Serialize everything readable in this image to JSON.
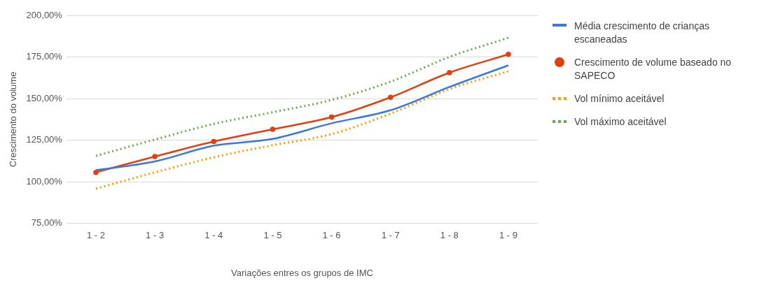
{
  "chart_data": {
    "type": "line",
    "xlabel": "Variações entres os grupos de IMC",
    "ylabel": "Crescimento do volume",
    "categories": [
      "1 - 2",
      "1 - 3",
      "1 - 4",
      "1 - 5",
      "1 - 6",
      "1 - 7",
      "1 - 8",
      "1 - 9"
    ],
    "series": [
      {
        "name": "Média crescimento de crianças escaneadas",
        "color": "#3c78d8",
        "values": [
          107,
          112.3,
          121.7,
          125.8,
          135.2,
          143,
          157,
          170
        ],
        "marker": "none",
        "line_style": "solid"
      },
      {
        "name": "Crescimento de volume baseado no SAPECO",
        "color": "#e0400f",
        "values": [
          105.7,
          115.2,
          124.2,
          131.6,
          138.9,
          150.8,
          165.6,
          176.6
        ],
        "marker": "circle",
        "line_style": "solid"
      },
      {
        "name": "Vol mínimo aceitável",
        "color": "#ff9900",
        "values": [
          95.9,
          105.7,
          114.8,
          122,
          128.7,
          141,
          155.7,
          166.4
        ],
        "marker": "none",
        "line_style": "dotted"
      },
      {
        "name": "Vol máximo aceitável",
        "color": "#6aa84f",
        "values": [
          115.6,
          125.4,
          134.8,
          141.8,
          149.2,
          160.2,
          175,
          186.5
        ],
        "marker": "none",
        "line_style": "dotted"
      }
    ],
    "ylim": [
      75,
      200
    ],
    "yticks": [
      {
        "value": 75,
        "label": "75,00%"
      },
      {
        "value": 100,
        "label": "100,00%"
      },
      {
        "value": 125,
        "label": "125,00%"
      },
      {
        "value": 150,
        "label": "150,00%"
      },
      {
        "value": 175,
        "label": "175,00%"
      },
      {
        "value": 200,
        "label": "200,00%"
      }
    ],
    "grid": "y",
    "legend": "right"
  }
}
